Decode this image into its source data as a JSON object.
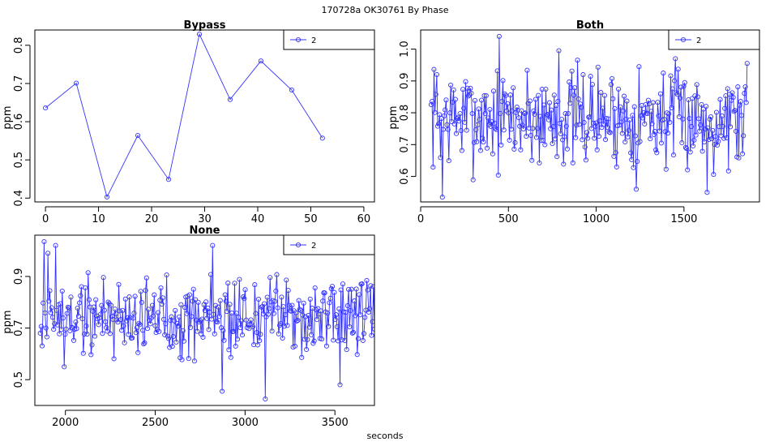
{
  "figure": {
    "suptitle": "170728a    OK30761    By Phase",
    "xlabel": "seconds",
    "line_color": "#3333ff"
  },
  "chart_data": [
    {
      "type": "line",
      "title": "Bypass",
      "ylabel": "ppm",
      "xlim": [
        -2,
        62
      ],
      "ylim": [
        0.39,
        0.84
      ],
      "xticks": [
        0,
        10,
        20,
        30,
        40,
        50,
        60
      ],
      "yticks": [
        0.4,
        0.5,
        0.6,
        0.7,
        0.8
      ],
      "legend": "2",
      "x": [
        0,
        5.8,
        11.6,
        17.4,
        23.2,
        29.0,
        34.8,
        40.6,
        46.4,
        52.2
      ],
      "y": [
        0.636,
        0.701,
        0.403,
        0.564,
        0.449,
        0.829,
        0.658,
        0.759,
        0.683,
        0.557
      ]
    },
    {
      "type": "line",
      "title": "Both",
      "ylabel": "ppm",
      "xlim": [
        0,
        1930
      ],
      "ylim": [
        0.52,
        1.06
      ],
      "xticks": [
        0,
        500,
        1000,
        1500
      ],
      "yticks": [
        0.6,
        0.7,
        0.8,
        0.9,
        1.0
      ],
      "legend": "2",
      "gen": {
        "x0": 60,
        "x1": 1860,
        "n": 340,
        "mean": 0.785,
        "amp": 0.085,
        "seed": 7
      },
      "extremes": [
        [
          125,
          0.535
        ],
        [
          450,
          1.04
        ],
        [
          790,
          0.995
        ],
        [
          1630,
          0.55
        ],
        [
          1230,
          0.56
        ],
        [
          90,
          0.92
        ],
        [
          1860,
          0.955
        ]
      ]
    },
    {
      "type": "line",
      "title": "None",
      "ylabel": "ppm",
      "xlim": [
        1830,
        3720
      ],
      "ylim": [
        0.4,
        1.06
      ],
      "xticks": [
        2000,
        2500,
        3000,
        3500
      ],
      "yticks": [
        0.5,
        0.7,
        0.9
      ],
      "legend": "2",
      "gen": {
        "x0": 1860,
        "x1": 3720,
        "n": 350,
        "mean": 0.745,
        "amp": 0.085,
        "seed": 19
      },
      "extremes": [
        [
          1880,
          1.035
        ],
        [
          1900,
          0.99
        ],
        [
          1945,
          1.02
        ],
        [
          2870,
          0.455
        ],
        [
          3110,
          0.425
        ],
        [
          3530,
          0.48
        ],
        [
          2820,
          1.02
        ],
        [
          1995,
          0.55
        ]
      ]
    }
  ]
}
